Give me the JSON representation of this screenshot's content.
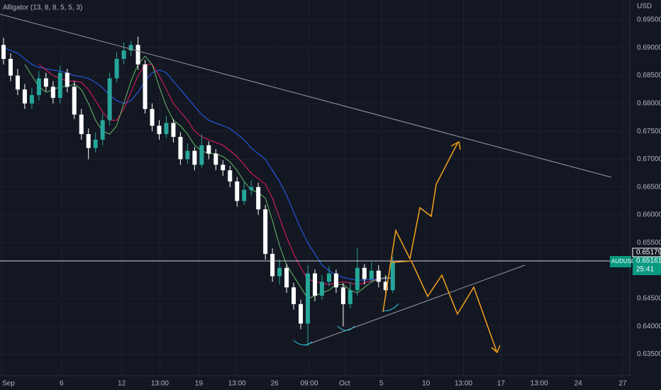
{
  "chart_data": {
    "type": "candlestick",
    "title": "Alligator (13, 8, 8, 5, 5, 3)",
    "y_axis_label": "USD",
    "symbol": "AUDUSD",
    "countdown": "25:41",
    "price_labels": [
      {
        "value": 0.65179,
        "label": "0.65179",
        "color": "#ffffff"
      },
      {
        "value": 0.65161,
        "label": "0.65161",
        "color": "#089981"
      }
    ],
    "up_color": "#26a69a",
    "down_color": "#ffffff",
    "xlim": [
      -0.5,
      88.5
    ],
    "ylim": [
      0.63113,
      0.69856
    ],
    "xticks": [
      {
        "value": -0.2,
        "label": "Sep"
      },
      {
        "value": 8.2,
        "label": "6"
      },
      {
        "value": 16.7,
        "label": "12"
      },
      {
        "value": 22.1,
        "label": "13:00"
      },
      {
        "value": 27.6,
        "label": "19"
      },
      {
        "value": 33.0,
        "label": "13:00"
      },
      {
        "value": 38.3,
        "label": "26"
      },
      {
        "value": 43.2,
        "label": "09:00"
      },
      {
        "value": 48.2,
        "label": "Oct"
      },
      {
        "value": 53.4,
        "label": "5"
      },
      {
        "value": 59.7,
        "label": "10"
      },
      {
        "value": 65.0,
        "label": "13:00"
      },
      {
        "value": 70.3,
        "label": "17"
      },
      {
        "value": 75.7,
        "label": "13:00"
      },
      {
        "value": 81.2,
        "label": "24"
      },
      {
        "value": 87.5,
        "label": "27"
      }
    ],
    "yticks": [
      {
        "value": 0.695,
        "label": "0.69500"
      },
      {
        "value": 0.69,
        "label": "0.69000"
      },
      {
        "value": 0.685,
        "label": "0.68500"
      },
      {
        "value": 0.68,
        "label": "0.68000"
      },
      {
        "value": 0.675,
        "label": "0.67500"
      },
      {
        "value": 0.67,
        "label": "0.67000"
      },
      {
        "value": 0.665,
        "label": "0.66500"
      },
      {
        "value": 0.66,
        "label": "0.66000"
      },
      {
        "value": 0.655,
        "label": "0.65500"
      },
      {
        "value": 0.645,
        "label": "0.64500"
      },
      {
        "value": 0.64,
        "label": "0.64000"
      },
      {
        "value": 0.635,
        "label": "0.63500"
      }
    ],
    "open": [
      0.6905,
      0.688,
      0.685,
      0.6825,
      0.68,
      0.6815,
      0.6845,
      0.683,
      0.681,
      0.6855,
      0.683,
      0.678,
      0.6745,
      0.672,
      0.6735,
      0.677,
      0.6845,
      0.688,
      0.6895,
      0.6905,
      0.687,
      0.679,
      0.676,
      0.6745,
      0.6765,
      0.674,
      0.67,
      0.6715,
      0.669,
      0.6725,
      0.671,
      0.669,
      0.668,
      0.666,
      0.6625,
      0.6645,
      0.665,
      0.661,
      0.653,
      0.649,
      0.6505,
      0.647,
      0.644,
      0.6405,
      0.6495,
      0.6455,
      0.648,
      0.6495,
      0.647,
      0.644,
      0.6465,
      0.6505,
      0.6485,
      0.65,
      0.648,
      0.6465
    ],
    "high": [
      0.6918,
      0.689,
      0.6862,
      0.6835,
      0.6828,
      0.6858,
      0.6855,
      0.684,
      0.6868,
      0.6862,
      0.684,
      0.679,
      0.6755,
      0.6748,
      0.6782,
      0.6855,
      0.6892,
      0.691,
      0.6912,
      0.692,
      0.6878,
      0.68,
      0.677,
      0.6778,
      0.6772,
      0.6748,
      0.6728,
      0.6722,
      0.6745,
      0.6732,
      0.6718,
      0.6698,
      0.6688,
      0.6668,
      0.666,
      0.6662,
      0.6658,
      0.6618,
      0.654,
      0.652,
      0.6512,
      0.6478,
      0.6448,
      0.651,
      0.6502,
      0.6492,
      0.6508,
      0.6502,
      0.6478,
      0.648,
      0.654,
      0.6512,
      0.6515,
      0.651,
      0.6492,
      0.6525
    ],
    "low": [
      0.687,
      0.684,
      0.6815,
      0.679,
      0.679,
      0.6805,
      0.6822,
      0.68,
      0.68,
      0.682,
      0.6772,
      0.6735,
      0.67,
      0.6712,
      0.6725,
      0.676,
      0.6838,
      0.687,
      0.6885,
      0.686,
      0.6782,
      0.675,
      0.6735,
      0.6738,
      0.673,
      0.669,
      0.6692,
      0.668,
      0.6685,
      0.67,
      0.668,
      0.667,
      0.665,
      0.6615,
      0.6618,
      0.6635,
      0.66,
      0.652,
      0.648,
      0.6475,
      0.646,
      0.643,
      0.6395,
      0.6365,
      0.6445,
      0.6448,
      0.6472,
      0.646,
      0.64,
      0.6432,
      0.6455,
      0.6475,
      0.6478,
      0.647,
      0.6455,
      0.646
    ],
    "close": [
      0.688,
      0.685,
      0.6825,
      0.68,
      0.6815,
      0.6845,
      0.683,
      0.681,
      0.6855,
      0.683,
      0.678,
      0.6745,
      0.672,
      0.6735,
      0.677,
      0.6845,
      0.688,
      0.6895,
      0.6905,
      0.687,
      0.679,
      0.676,
      0.6745,
      0.6765,
      0.674,
      0.67,
      0.6715,
      0.669,
      0.6725,
      0.671,
      0.669,
      0.668,
      0.666,
      0.6625,
      0.6645,
      0.665,
      0.661,
      0.653,
      0.649,
      0.6505,
      0.647,
      0.644,
      0.6405,
      0.6495,
      0.6455,
      0.648,
      0.6495,
      0.647,
      0.644,
      0.6465,
      0.6505,
      0.6485,
      0.65,
      0.648,
      0.6465,
      0.6516
    ],
    "series": [
      {
        "color": "#2962ff",
        "values": [
          0.69,
          0.6895,
          0.689,
          0.688,
          0.687,
          0.6865,
          0.6862,
          0.686,
          0.6858,
          0.6855,
          0.685,
          0.6848,
          0.6845,
          0.6838,
          0.6828,
          0.6815,
          0.6805,
          0.68,
          0.6805,
          0.682,
          0.684,
          0.6855,
          0.686,
          0.6855,
          0.684,
          0.6825,
          0.681,
          0.6795,
          0.678,
          0.677,
          0.6765,
          0.676,
          0.6755,
          0.6745,
          0.6735,
          0.672,
          0.671,
          0.67,
          0.668,
          0.666,
          0.6635,
          0.6605,
          0.6575,
          0.655,
          0.653,
          0.651,
          0.65,
          0.6492,
          0.6488,
          0.6485,
          0.6483,
          0.6483,
          0.6484,
          0.6485,
          0.6486,
          0.6487
        ]
      },
      {
        "color": "#e91e63",
        "values": [
          null,
          null,
          null,
          null,
          null,
          0.687,
          0.686,
          0.685,
          0.6845,
          0.684,
          0.684,
          0.6838,
          0.6825,
          0.6805,
          0.6785,
          0.677,
          0.677,
          0.679,
          0.682,
          0.685,
          0.687,
          0.687,
          0.685,
          0.6825,
          0.68,
          0.6785,
          0.677,
          0.675,
          0.674,
          0.6735,
          0.673,
          0.6725,
          0.6715,
          0.6705,
          0.669,
          0.6675,
          0.6665,
          0.6655,
          0.663,
          0.6595,
          0.656,
          0.653,
          0.6505,
          0.6485,
          0.648,
          0.6478,
          0.6475,
          0.6478,
          0.648,
          0.6478,
          0.6475,
          0.6478,
          0.6482,
          0.6485,
          0.6487,
          0.6488
        ]
      },
      {
        "color": "#66bb6a",
        "values": [
          null,
          null,
          null,
          0.687,
          0.685,
          0.683,
          0.682,
          0.6825,
          0.683,
          0.683,
          0.6835,
          0.6825,
          0.68,
          0.677,
          0.675,
          0.6745,
          0.676,
          0.68,
          0.684,
          0.687,
          0.6885,
          0.687,
          0.683,
          0.6795,
          0.677,
          0.676,
          0.6745,
          0.6725,
          0.6715,
          0.671,
          0.671,
          0.6705,
          0.6695,
          0.668,
          0.666,
          0.6645,
          0.664,
          0.663,
          0.659,
          0.6545,
          0.651,
          0.649,
          0.647,
          0.645,
          0.6455,
          0.646,
          0.6465,
          0.6475,
          0.6475,
          0.6465,
          0.646,
          0.647,
          0.648,
          0.6485,
          0.6488,
          0.6485
        ]
      }
    ]
  }
}
